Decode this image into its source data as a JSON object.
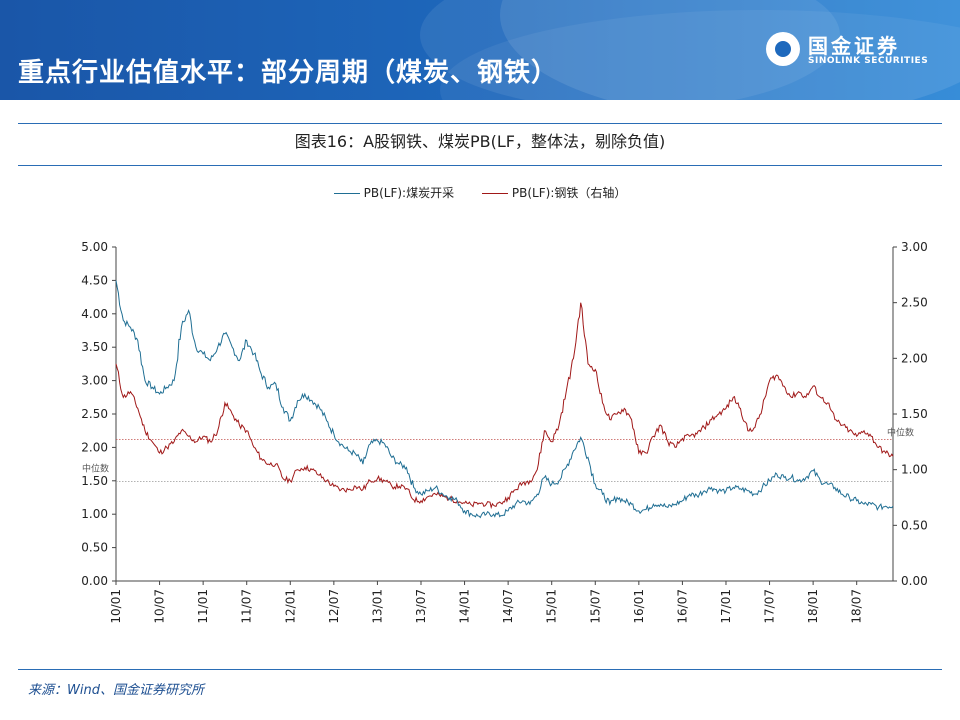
{
  "header": {
    "title": "重点行业估值水平：部分周期（煤炭、钢铁）",
    "logo_cn": "国金证券",
    "logo_en": "SINOLINK SECURITIES"
  },
  "source": "来源：Wind、国金证券研究所",
  "colors": {
    "header": "#1e69bd",
    "coal": "#1f6e93",
    "steel": "#a01818",
    "median": "#c0504d"
  },
  "chart_data": {
    "type": "line",
    "title": "图表16：A股钢铁、煤炭PB(LF，整体法，剔除负值)",
    "x_tick_labels": [
      "10/01",
      "10/07",
      "11/01",
      "11/07",
      "12/01",
      "12/07",
      "13/01",
      "13/07",
      "14/01",
      "14/07",
      "15/01",
      "15/07",
      "16/01",
      "16/07",
      "17/01",
      "17/07",
      "18/01",
      "18/07"
    ],
    "x_range": [
      "2010-01",
      "2018-12"
    ],
    "y_left": {
      "range": [
        0,
        5
      ],
      "ticks": [
        "0.00",
        "0.50",
        "1.00",
        "1.50",
        "2.00",
        "2.50",
        "3.00",
        "3.50",
        "4.00",
        "4.50",
        "5.00"
      ]
    },
    "y_right": {
      "range": [
        0,
        3
      ],
      "ticks": [
        "0.00",
        "0.50",
        "1.00",
        "1.50",
        "2.00",
        "2.50",
        "3.00"
      ]
    },
    "median_label": "中位数",
    "series": [
      {
        "name": "PB(LF):煤炭开采",
        "axis": "left",
        "median": 1.49,
        "points": [
          [
            "2010-01",
            4.5
          ],
          [
            "2010-02",
            3.9
          ],
          [
            "2010-03",
            3.8
          ],
          [
            "2010-04",
            3.6
          ],
          [
            "2010-05",
            3.0
          ],
          [
            "2010-06",
            2.9
          ],
          [
            "2010-07",
            2.8
          ],
          [
            "2010-08",
            2.9
          ],
          [
            "2010-09",
            3.0
          ],
          [
            "2010-10",
            3.8
          ],
          [
            "2010-11",
            4.05
          ],
          [
            "2010-12",
            3.5
          ],
          [
            "2011-01",
            3.4
          ],
          [
            "2011-02",
            3.3
          ],
          [
            "2011-03",
            3.5
          ],
          [
            "2011-04",
            3.7
          ],
          [
            "2011-05",
            3.5
          ],
          [
            "2011-06",
            3.3
          ],
          [
            "2011-07",
            3.6
          ],
          [
            "2011-08",
            3.4
          ],
          [
            "2011-09",
            3.1
          ],
          [
            "2011-10",
            2.9
          ],
          [
            "2011-11",
            2.95
          ],
          [
            "2011-12",
            2.6
          ],
          [
            "2012-01",
            2.4
          ],
          [
            "2012-02",
            2.7
          ],
          [
            "2012-03",
            2.8
          ],
          [
            "2012-04",
            2.7
          ],
          [
            "2012-05",
            2.6
          ],
          [
            "2012-06",
            2.4
          ],
          [
            "2012-07",
            2.2
          ],
          [
            "2012-08",
            2.05
          ],
          [
            "2012-09",
            1.95
          ],
          [
            "2012-10",
            1.9
          ],
          [
            "2012-11",
            1.75
          ],
          [
            "2012-12",
            2.05
          ],
          [
            "2013-01",
            2.1
          ],
          [
            "2013-02",
            2.05
          ],
          [
            "2013-03",
            1.85
          ],
          [
            "2013-04",
            1.75
          ],
          [
            "2013-05",
            1.7
          ],
          [
            "2013-06",
            1.4
          ],
          [
            "2013-07",
            1.3
          ],
          [
            "2013-08",
            1.35
          ],
          [
            "2013-09",
            1.4
          ],
          [
            "2013-10",
            1.3
          ],
          [
            "2013-11",
            1.25
          ],
          [
            "2013-12",
            1.2
          ],
          [
            "2014-01",
            1.05
          ],
          [
            "2014-02",
            1.0
          ],
          [
            "2014-03",
            0.97
          ],
          [
            "2014-04",
            1.0
          ],
          [
            "2014-05",
            1.0
          ],
          [
            "2014-06",
            0.98
          ],
          [
            "2014-07",
            1.05
          ],
          [
            "2014-08",
            1.15
          ],
          [
            "2014-09",
            1.2
          ],
          [
            "2014-10",
            1.15
          ],
          [
            "2014-11",
            1.3
          ],
          [
            "2014-12",
            1.55
          ],
          [
            "2015-01",
            1.45
          ],
          [
            "2015-02",
            1.5
          ],
          [
            "2015-03",
            1.7
          ],
          [
            "2015-04",
            1.95
          ],
          [
            "2015-05",
            2.15
          ],
          [
            "2015-06",
            1.85
          ],
          [
            "2015-07",
            1.45
          ],
          [
            "2015-08",
            1.3
          ],
          [
            "2015-09",
            1.15
          ],
          [
            "2015-10",
            1.25
          ],
          [
            "2015-11",
            1.2
          ],
          [
            "2015-12",
            1.15
          ],
          [
            "2016-01",
            1.05
          ],
          [
            "2016-02",
            1.07
          ],
          [
            "2016-03",
            1.15
          ],
          [
            "2016-04",
            1.15
          ],
          [
            "2016-05",
            1.1
          ],
          [
            "2016-06",
            1.15
          ],
          [
            "2016-07",
            1.2
          ],
          [
            "2016-08",
            1.3
          ],
          [
            "2016-09",
            1.28
          ],
          [
            "2016-10",
            1.35
          ],
          [
            "2016-11",
            1.4
          ],
          [
            "2016-12",
            1.35
          ],
          [
            "2017-01",
            1.35
          ],
          [
            "2017-02",
            1.4
          ],
          [
            "2017-03",
            1.38
          ],
          [
            "2017-04",
            1.35
          ],
          [
            "2017-05",
            1.3
          ],
          [
            "2017-06",
            1.4
          ],
          [
            "2017-07",
            1.5
          ],
          [
            "2017-08",
            1.6
          ],
          [
            "2017-09",
            1.55
          ],
          [
            "2017-10",
            1.55
          ],
          [
            "2017-11",
            1.5
          ],
          [
            "2017-12",
            1.55
          ],
          [
            "2018-01",
            1.65
          ],
          [
            "2018-02",
            1.5
          ],
          [
            "2018-03",
            1.45
          ],
          [
            "2018-04",
            1.4
          ],
          [
            "2018-05",
            1.3
          ],
          [
            "2018-06",
            1.25
          ],
          [
            "2018-07",
            1.2
          ],
          [
            "2018-08",
            1.15
          ],
          [
            "2018-09",
            1.15
          ],
          [
            "2018-10",
            1.1
          ],
          [
            "2018-11",
            1.12
          ],
          [
            "2018-12",
            1.12
          ]
        ]
      },
      {
        "name": "PB(LF):钢铁（右轴）",
        "axis": "right",
        "median": 1.27,
        "points": [
          [
            "2010-01",
            1.95
          ],
          [
            "2010-02",
            1.65
          ],
          [
            "2010-03",
            1.7
          ],
          [
            "2010-04",
            1.55
          ],
          [
            "2010-05",
            1.35
          ],
          [
            "2010-06",
            1.25
          ],
          [
            "2010-07",
            1.15
          ],
          [
            "2010-08",
            1.2
          ],
          [
            "2010-09",
            1.25
          ],
          [
            "2010-10",
            1.35
          ],
          [
            "2010-11",
            1.3
          ],
          [
            "2010-12",
            1.25
          ],
          [
            "2011-01",
            1.3
          ],
          [
            "2011-02",
            1.25
          ],
          [
            "2011-03",
            1.35
          ],
          [
            "2011-04",
            1.6
          ],
          [
            "2011-05",
            1.5
          ],
          [
            "2011-06",
            1.4
          ],
          [
            "2011-07",
            1.35
          ],
          [
            "2011-08",
            1.2
          ],
          [
            "2011-09",
            1.1
          ],
          [
            "2011-10",
            1.05
          ],
          [
            "2011-11",
            1.05
          ],
          [
            "2011-12",
            0.92
          ],
          [
            "2012-01",
            0.9
          ],
          [
            "2012-02",
            1.0
          ],
          [
            "2012-03",
            1.02
          ],
          [
            "2012-04",
            1.0
          ],
          [
            "2012-05",
            0.95
          ],
          [
            "2012-06",
            0.9
          ],
          [
            "2012-07",
            0.85
          ],
          [
            "2012-08",
            0.82
          ],
          [
            "2012-09",
            0.82
          ],
          [
            "2012-10",
            0.85
          ],
          [
            "2012-11",
            0.82
          ],
          [
            "2012-12",
            0.9
          ],
          [
            "2013-01",
            0.92
          ],
          [
            "2013-02",
            0.9
          ],
          [
            "2013-03",
            0.85
          ],
          [
            "2013-04",
            0.85
          ],
          [
            "2013-05",
            0.83
          ],
          [
            "2013-06",
            0.73
          ],
          [
            "2013-07",
            0.72
          ],
          [
            "2013-08",
            0.76
          ],
          [
            "2013-09",
            0.78
          ],
          [
            "2013-10",
            0.76
          ],
          [
            "2013-11",
            0.74
          ],
          [
            "2013-12",
            0.72
          ],
          [
            "2014-01",
            0.7
          ],
          [
            "2014-02",
            0.68
          ],
          [
            "2014-03",
            0.7
          ],
          [
            "2014-04",
            0.69
          ],
          [
            "2014-05",
            0.68
          ],
          [
            "2014-06",
            0.7
          ],
          [
            "2014-07",
            0.75
          ],
          [
            "2014-08",
            0.82
          ],
          [
            "2014-09",
            0.88
          ],
          [
            "2014-10",
            0.9
          ],
          [
            "2014-11",
            1.0
          ],
          [
            "2014-12",
            1.35
          ],
          [
            "2015-01",
            1.25
          ],
          [
            "2015-02",
            1.4
          ],
          [
            "2015-03",
            1.7
          ],
          [
            "2015-04",
            2.0
          ],
          [
            "2015-05",
            2.5
          ],
          [
            "2015-06",
            1.95
          ],
          [
            "2015-07",
            1.9
          ],
          [
            "2015-08",
            1.6
          ],
          [
            "2015-09",
            1.45
          ],
          [
            "2015-10",
            1.5
          ],
          [
            "2015-11",
            1.55
          ],
          [
            "2015-12",
            1.45
          ],
          [
            "2016-01",
            1.15
          ],
          [
            "2016-02",
            1.15
          ],
          [
            "2016-03",
            1.3
          ],
          [
            "2016-04",
            1.4
          ],
          [
            "2016-05",
            1.25
          ],
          [
            "2016-06",
            1.2
          ],
          [
            "2016-07",
            1.28
          ],
          [
            "2016-08",
            1.3
          ],
          [
            "2016-09",
            1.32
          ],
          [
            "2016-10",
            1.38
          ],
          [
            "2016-11",
            1.45
          ],
          [
            "2016-12",
            1.5
          ],
          [
            "2017-01",
            1.55
          ],
          [
            "2017-02",
            1.65
          ],
          [
            "2017-03",
            1.55
          ],
          [
            "2017-04",
            1.35
          ],
          [
            "2017-05",
            1.38
          ],
          [
            "2017-06",
            1.55
          ],
          [
            "2017-07",
            1.8
          ],
          [
            "2017-08",
            1.85
          ],
          [
            "2017-09",
            1.75
          ],
          [
            "2017-10",
            1.65
          ],
          [
            "2017-11",
            1.7
          ],
          [
            "2017-12",
            1.65
          ],
          [
            "2018-01",
            1.75
          ],
          [
            "2018-02",
            1.65
          ],
          [
            "2018-03",
            1.6
          ],
          [
            "2018-04",
            1.45
          ],
          [
            "2018-05",
            1.4
          ],
          [
            "2018-06",
            1.35
          ],
          [
            "2018-07",
            1.3
          ],
          [
            "2018-08",
            1.35
          ],
          [
            "2018-09",
            1.3
          ],
          [
            "2018-10",
            1.2
          ],
          [
            "2018-11",
            1.15
          ],
          [
            "2018-12",
            1.12
          ]
        ]
      }
    ]
  }
}
